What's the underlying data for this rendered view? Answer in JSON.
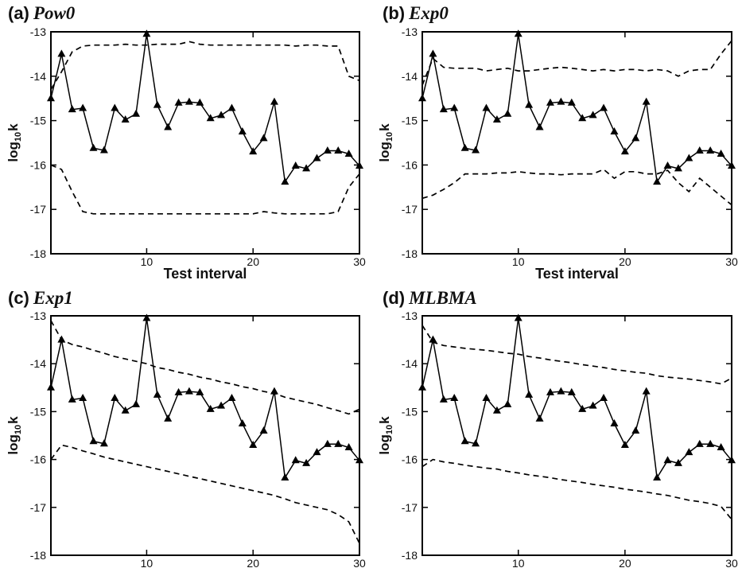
{
  "chart_data": [
    {
      "type": "line",
      "label": "(a)",
      "title": "Pow0",
      "xlabel": "Test interval",
      "ylabel": "log",
      "ylabel_sub": "10",
      "ylabel_tail": "k",
      "xlim": [
        1,
        30
      ],
      "ylim": [
        -18,
        -13
      ],
      "xticks": [
        10,
        20,
        30
      ],
      "yticks": [
        -18,
        -17,
        -16,
        -15,
        -14,
        -13
      ],
      "observed": {
        "x": [
          1,
          2,
          3,
          4,
          5,
          6,
          7,
          8,
          9,
          10,
          11,
          12,
          13,
          14,
          15,
          16,
          17,
          18,
          19,
          20,
          21,
          22,
          23,
          24,
          25,
          26,
          27,
          28,
          29,
          30
        ],
        "y": [
          -14.5,
          -13.5,
          -14.75,
          -14.72,
          -15.62,
          -15.67,
          -14.72,
          -14.98,
          -14.85,
          -13.05,
          -14.65,
          -15.15,
          -14.6,
          -14.58,
          -14.6,
          -14.95,
          -14.88,
          -14.72,
          -15.25,
          -15.7,
          -15.4,
          -14.58,
          -16.38,
          -16.02,
          -16.08,
          -15.85,
          -15.68,
          -15.68,
          -15.75,
          -16.02
        ]
      },
      "upper_bound": {
        "x": [
          1,
          2,
          3,
          4,
          5,
          6,
          7,
          8,
          9,
          10,
          11,
          12,
          13,
          14,
          15,
          16,
          17,
          18,
          19,
          20,
          21,
          22,
          23,
          24,
          25,
          26,
          27,
          28,
          29,
          30
        ],
        "y": [
          -14.3,
          -13.9,
          -13.45,
          -13.32,
          -13.3,
          -13.3,
          -13.3,
          -13.28,
          -13.3,
          -13.3,
          -13.28,
          -13.28,
          -13.28,
          -13.22,
          -13.28,
          -13.3,
          -13.3,
          -13.3,
          -13.3,
          -13.3,
          -13.3,
          -13.3,
          -13.3,
          -13.32,
          -13.3,
          -13.3,
          -13.32,
          -13.32,
          -14.0,
          -14.1
        ]
      },
      "lower_bound": {
        "x": [
          1,
          2,
          3,
          4,
          5,
          6,
          7,
          8,
          9,
          10,
          11,
          12,
          13,
          14,
          15,
          16,
          17,
          18,
          19,
          20,
          21,
          22,
          23,
          24,
          25,
          26,
          27,
          28,
          29,
          30
        ],
        "y": [
          -16.0,
          -16.1,
          -16.6,
          -17.05,
          -17.1,
          -17.1,
          -17.1,
          -17.1,
          -17.1,
          -17.1,
          -17.1,
          -17.1,
          -17.1,
          -17.1,
          -17.1,
          -17.1,
          -17.1,
          -17.1,
          -17.1,
          -17.1,
          -17.05,
          -17.08,
          -17.1,
          -17.1,
          -17.1,
          -17.1,
          -17.1,
          -17.05,
          -16.5,
          -16.2
        ]
      }
    },
    {
      "type": "line",
      "label": "(b)",
      "title": "Exp0",
      "xlabel": "Test interval",
      "ylabel": "log",
      "ylabel_sub": "10",
      "ylabel_tail": "k",
      "xlim": [
        1,
        30
      ],
      "ylim": [
        -18,
        -13
      ],
      "xticks": [
        10,
        20,
        30
      ],
      "yticks": [
        -18,
        -17,
        -16,
        -15,
        -14,
        -13
      ],
      "observed": {
        "x": [
          1,
          2,
          3,
          4,
          5,
          6,
          7,
          8,
          9,
          10,
          11,
          12,
          13,
          14,
          15,
          16,
          17,
          18,
          19,
          20,
          21,
          22,
          23,
          24,
          25,
          26,
          27,
          28,
          29,
          30
        ],
        "y": [
          -14.5,
          -13.5,
          -14.75,
          -14.72,
          -15.62,
          -15.67,
          -14.72,
          -14.98,
          -14.85,
          -13.05,
          -14.65,
          -15.15,
          -14.6,
          -14.58,
          -14.6,
          -14.95,
          -14.88,
          -14.72,
          -15.25,
          -15.7,
          -15.4,
          -14.58,
          -16.38,
          -16.02,
          -16.08,
          -15.85,
          -15.68,
          -15.68,
          -15.75,
          -16.02
        ]
      },
      "upper_bound": {
        "x": [
          1,
          2,
          3,
          4,
          5,
          6,
          7,
          8,
          9,
          10,
          11,
          12,
          13,
          14,
          15,
          16,
          17,
          18,
          19,
          20,
          21,
          22,
          23,
          24,
          25,
          26,
          27,
          28,
          29,
          30
        ],
        "y": [
          -14.2,
          -13.6,
          -13.8,
          -13.82,
          -13.82,
          -13.82,
          -13.88,
          -13.85,
          -13.82,
          -13.88,
          -13.88,
          -13.85,
          -13.82,
          -13.8,
          -13.82,
          -13.85,
          -13.88,
          -13.85,
          -13.88,
          -13.85,
          -13.85,
          -13.88,
          -13.85,
          -13.88,
          -14.0,
          -13.88,
          -13.85,
          -13.85,
          -13.5,
          -13.2
        ]
      },
      "lower_bound": {
        "x": [
          1,
          2,
          3,
          4,
          5,
          6,
          7,
          8,
          9,
          10,
          11,
          12,
          13,
          14,
          15,
          16,
          17,
          18,
          19,
          20,
          21,
          22,
          23,
          24,
          25,
          26,
          27,
          28,
          29,
          30
        ],
        "y": [
          -16.75,
          -16.68,
          -16.55,
          -16.4,
          -16.2,
          -16.2,
          -16.2,
          -16.18,
          -16.18,
          -16.15,
          -16.18,
          -16.2,
          -16.2,
          -16.22,
          -16.2,
          -16.2,
          -16.2,
          -16.1,
          -16.3,
          -16.15,
          -16.15,
          -16.2,
          -16.2,
          -16.12,
          -16.4,
          -16.6,
          -16.3,
          -16.5,
          -16.7,
          -16.9
        ]
      }
    },
    {
      "type": "line",
      "label": "(c)",
      "title": "Exp1",
      "xlabel": "Test interval",
      "ylabel": "log",
      "ylabel_sub": "10",
      "ylabel_tail": "k",
      "xlim": [
        1,
        30
      ],
      "ylim": [
        -18,
        -13
      ],
      "xticks": [
        10,
        20,
        30
      ],
      "yticks": [
        -18,
        -17,
        -16,
        -15,
        -14,
        -13
      ],
      "observed": {
        "x": [
          1,
          2,
          3,
          4,
          5,
          6,
          7,
          8,
          9,
          10,
          11,
          12,
          13,
          14,
          15,
          16,
          17,
          18,
          19,
          20,
          21,
          22,
          23,
          24,
          25,
          26,
          27,
          28,
          29,
          30
        ],
        "y": [
          -14.5,
          -13.5,
          -14.75,
          -14.72,
          -15.62,
          -15.67,
          -14.72,
          -14.98,
          -14.85,
          -13.05,
          -14.65,
          -15.15,
          -14.6,
          -14.58,
          -14.6,
          -14.95,
          -14.88,
          -14.72,
          -15.25,
          -15.7,
          -15.4,
          -14.58,
          -16.38,
          -16.02,
          -16.08,
          -15.85,
          -15.68,
          -15.68,
          -15.75,
          -16.02
        ]
      },
      "upper_bound": {
        "x": [
          1,
          2,
          3,
          4,
          5,
          6,
          7,
          8,
          9,
          10,
          11,
          12,
          13,
          14,
          15,
          16,
          17,
          18,
          19,
          20,
          21,
          22,
          23,
          24,
          25,
          26,
          27,
          28,
          29,
          30
        ],
        "y": [
          -13.1,
          -13.5,
          -13.6,
          -13.65,
          -13.72,
          -13.78,
          -13.85,
          -13.9,
          -13.95,
          -14.0,
          -14.08,
          -14.12,
          -14.18,
          -14.22,
          -14.28,
          -14.32,
          -14.38,
          -14.42,
          -14.48,
          -14.52,
          -14.58,
          -14.62,
          -14.7,
          -14.75,
          -14.8,
          -14.85,
          -14.92,
          -14.98,
          -15.05,
          -14.95
        ]
      },
      "lower_bound": {
        "x": [
          1,
          2,
          3,
          4,
          5,
          6,
          7,
          8,
          9,
          10,
          11,
          12,
          13,
          14,
          15,
          16,
          17,
          18,
          19,
          20,
          21,
          22,
          23,
          24,
          25,
          26,
          27,
          28,
          29,
          30
        ],
        "y": [
          -16.0,
          -15.7,
          -15.75,
          -15.82,
          -15.88,
          -15.95,
          -16.0,
          -16.05,
          -16.1,
          -16.15,
          -16.2,
          -16.25,
          -16.3,
          -16.35,
          -16.4,
          -16.45,
          -16.5,
          -16.55,
          -16.6,
          -16.65,
          -16.7,
          -16.75,
          -16.82,
          -16.9,
          -16.95,
          -17.0,
          -17.05,
          -17.15,
          -17.3,
          -17.75
        ]
      }
    },
    {
      "type": "line",
      "label": "(d)",
      "title": "MLBMA",
      "xlabel": "Test interval",
      "ylabel": "log",
      "ylabel_sub": "10",
      "ylabel_tail": "k",
      "xlim": [
        1,
        30
      ],
      "ylim": [
        -18,
        -13
      ],
      "xticks": [
        10,
        20,
        30
      ],
      "yticks": [
        -18,
        -17,
        -16,
        -15,
        -14,
        -13
      ],
      "observed": {
        "x": [
          1,
          2,
          3,
          4,
          5,
          6,
          7,
          8,
          9,
          10,
          11,
          12,
          13,
          14,
          15,
          16,
          17,
          18,
          19,
          20,
          21,
          22,
          23,
          24,
          25,
          26,
          27,
          28,
          29,
          30
        ],
        "y": [
          -14.5,
          -13.5,
          -14.75,
          -14.72,
          -15.62,
          -15.67,
          -14.72,
          -14.98,
          -14.85,
          -13.05,
          -14.65,
          -15.15,
          -14.6,
          -14.58,
          -14.6,
          -14.95,
          -14.88,
          -14.72,
          -15.25,
          -15.7,
          -15.4,
          -14.58,
          -16.38,
          -16.02,
          -16.08,
          -15.85,
          -15.68,
          -15.68,
          -15.75,
          -16.02
        ]
      },
      "upper_bound": {
        "x": [
          1,
          2,
          3,
          4,
          5,
          6,
          7,
          8,
          9,
          10,
          11,
          12,
          13,
          14,
          15,
          16,
          17,
          18,
          19,
          20,
          21,
          22,
          23,
          24,
          25,
          26,
          27,
          28,
          29,
          30
        ],
        "y": [
          -13.2,
          -13.55,
          -13.62,
          -13.65,
          -13.68,
          -13.7,
          -13.72,
          -13.75,
          -13.78,
          -13.8,
          -13.85,
          -13.88,
          -13.92,
          -13.95,
          -13.98,
          -14.02,
          -14.05,
          -14.08,
          -14.12,
          -14.15,
          -14.18,
          -14.2,
          -14.25,
          -14.28,
          -14.3,
          -14.32,
          -14.35,
          -14.38,
          -14.42,
          -14.3
        ]
      },
      "lower_bound": {
        "x": [
          1,
          2,
          3,
          4,
          5,
          6,
          7,
          8,
          9,
          10,
          11,
          12,
          13,
          14,
          15,
          16,
          17,
          18,
          19,
          20,
          21,
          22,
          23,
          24,
          25,
          26,
          27,
          28,
          29,
          30
        ],
        "y": [
          -16.15,
          -16.0,
          -16.05,
          -16.08,
          -16.12,
          -16.15,
          -16.18,
          -16.2,
          -16.25,
          -16.28,
          -16.32,
          -16.35,
          -16.38,
          -16.42,
          -16.45,
          -16.48,
          -16.52,
          -16.55,
          -16.58,
          -16.62,
          -16.65,
          -16.68,
          -16.72,
          -16.75,
          -16.8,
          -16.85,
          -16.88,
          -16.92,
          -16.98,
          -17.25
        ]
      }
    }
  ]
}
